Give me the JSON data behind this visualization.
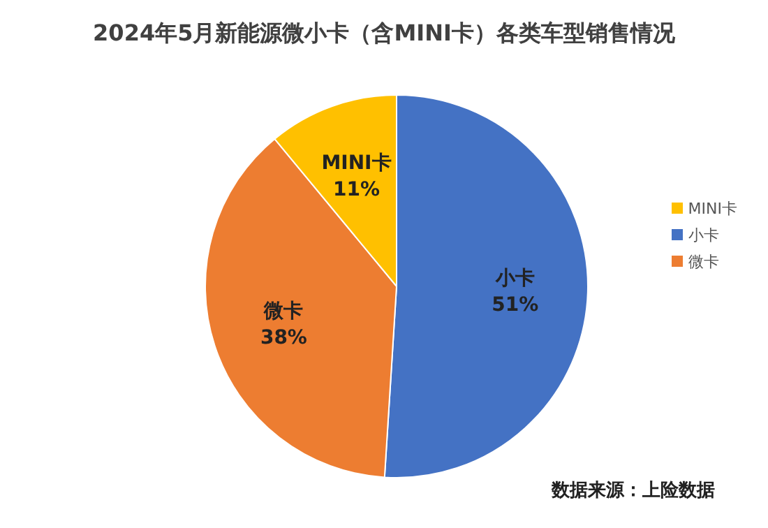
{
  "chart_data": {
    "type": "pie",
    "title": "2024年5月新能源微小卡（含MINI卡）各类车型销售情况",
    "categories": [
      "小卡",
      "微卡",
      "MINI卡"
    ],
    "values": [
      51,
      38,
      11
    ],
    "value_labels": [
      "51%",
      "38%",
      "11%"
    ],
    "colors": [
      "#4472c4",
      "#ed7d31",
      "#ffc000"
    ],
    "legend": "right",
    "annotations": [
      "数据来源：上险数据"
    ]
  }
}
